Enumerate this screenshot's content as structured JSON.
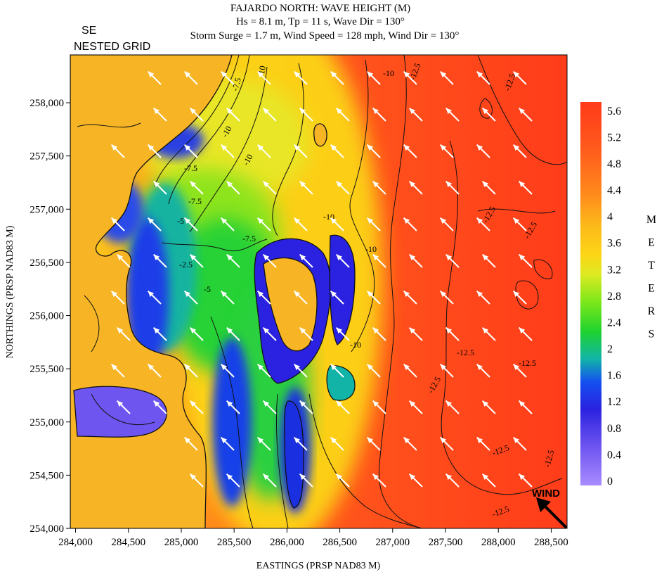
{
  "chart_data": {
    "type": "heatmap",
    "title_lines": [
      "FAJARDO NORTH: WAVE HEIGHT (M)",
      "Hs = 8.1 m, Tp = 11 s, Wave Dir = 130°",
      "Storm Surge = 1.7 m, Wind Speed = 128 mph, Wind Dir = 130°"
    ],
    "corner_label": [
      "SE",
      "NESTED GRID"
    ],
    "xlabel": "EASTINGS (PRSP NAD83 M)",
    "ylabel": "NORTHINGS (PRSP NAD83 M)",
    "xlim": [
      283950,
      288650
    ],
    "ylim": [
      254000,
      258450
    ],
    "x_ticks": [
      284000,
      284500,
      285000,
      285500,
      286000,
      286500,
      287000,
      287500,
      288000,
      288500
    ],
    "x_tick_labels": [
      "284,000",
      "284,500",
      "285,000",
      "285,500",
      "286,000",
      "286,500",
      "287,000",
      "287,500",
      "288,000",
      "288,500"
    ],
    "y_ticks": [
      254000,
      254500,
      255000,
      255500,
      256000,
      256500,
      257000,
      257500,
      258000
    ],
    "y_tick_labels": [
      "254,000",
      "254,500",
      "255,000",
      "255,500",
      "256,000",
      "256,500",
      "257,000",
      "257,500",
      "258,000"
    ],
    "colorbar": {
      "range": [
        0,
        5.8
      ],
      "ticks": [
        0,
        0.4,
        0.8,
        1.2,
        1.6,
        2,
        2.4,
        2.8,
        3.2,
        3.6,
        4,
        4.4,
        4.8,
        5.2,
        5.6
      ],
      "tick_labels": [
        "0",
        "0.4",
        "0.8",
        "1.2",
        "1.6",
        "2",
        "2.4",
        "2.8",
        "3.2",
        "3.6",
        "4",
        "4.4",
        "4.8",
        "5.2",
        "5.6"
      ],
      "unit_letters": [
        "M",
        "E",
        "T",
        "E",
        "R",
        "S"
      ],
      "colors": [
        "#a88cff",
        "#6f55f0",
        "#2a22e0",
        "#1450f0",
        "#12b4a8",
        "#1ed230",
        "#7de81a",
        "#dcea22",
        "#fcd616",
        "#fcb81a",
        "#ff8a1c",
        "#ff5a1c",
        "#ff3a1a"
      ]
    },
    "contour_labels": [
      "-2.5",
      "-5",
      "-7.5",
      "-10",
      "-12.5"
    ],
    "wind_label": "WIND",
    "wind_direction_deg": 130,
    "vector_direction": "toward north-west",
    "land_color": "#f7b526"
  }
}
